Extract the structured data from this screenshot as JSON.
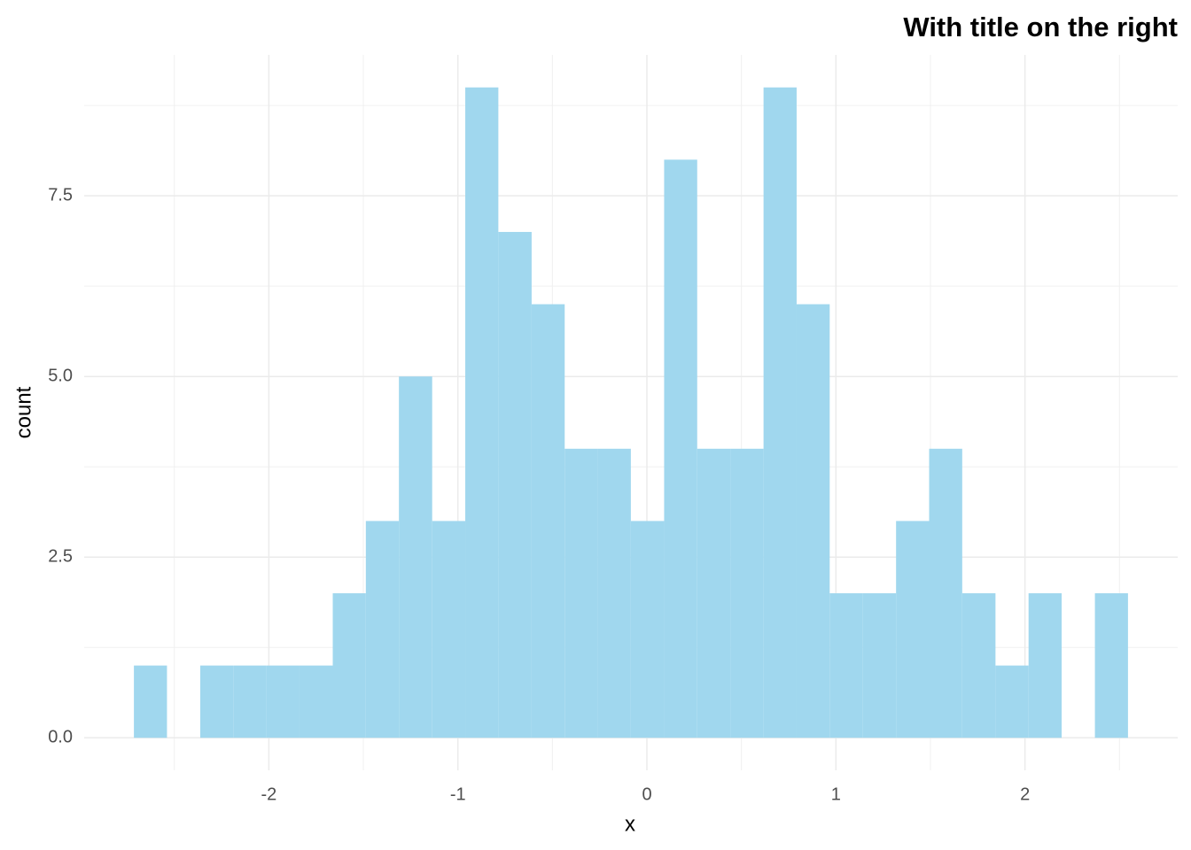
{
  "chart_data": {
    "type": "histogram",
    "title": "With title on the right",
    "x_label": "x",
    "y_label": "count",
    "bins": [
      -2.714,
      -2.539,
      -2.363,
      -2.188,
      -2.013,
      -1.838,
      -1.662,
      -1.487,
      -1.312,
      -1.136,
      -0.961,
      -0.786,
      -0.61,
      -0.435,
      -0.26,
      -0.085,
      0.091,
      0.266,
      0.441,
      0.617,
      0.792,
      0.967,
      1.143,
      1.318,
      1.493,
      1.668,
      1.844,
      2.019,
      2.194,
      2.37,
      2.545
    ],
    "counts": [
      1,
      0,
      1,
      1,
      1,
      1,
      2,
      3,
      5,
      3,
      9,
      7,
      6,
      4,
      4,
      3,
      8,
      4,
      4,
      9,
      6,
      2,
      2,
      3,
      4,
      2,
      1,
      2,
      0,
      2
    ],
    "color": "#a0d7ee",
    "xlim": [
      -2.977,
      2.808
    ],
    "ylim": [
      -0.45,
      9.45
    ],
    "xticks": [
      -2,
      -1,
      0,
      1,
      2
    ],
    "yticks": [
      {
        "value": 0,
        "label": "0.0"
      },
      2.5,
      {
        "value": 5,
        "label": "5.0"
      },
      7.5
    ],
    "x_minor_grid": [
      -2.5,
      -1.5,
      -0.5,
      0.5,
      1.5,
      2.5
    ],
    "y_minor_grid": [
      1.25,
      3.75,
      6.25,
      8.75
    ],
    "grid": true
  }
}
